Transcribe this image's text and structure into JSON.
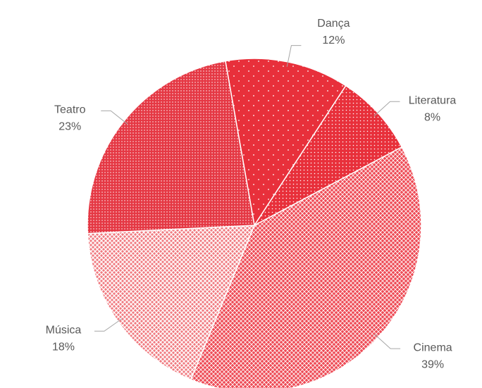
{
  "chart_data": {
    "type": "pie",
    "categories": [
      "Dança",
      "Literatura",
      "Cinema",
      "Música",
      "Teatro"
    ],
    "values": [
      12,
      8,
      39,
      18,
      23
    ],
    "value_labels": [
      "12%",
      "8%",
      "39%",
      "18%",
      "23%"
    ],
    "colors": [
      "#e8303b",
      "#e8303b",
      "#ee4a55",
      "#f07a80",
      "#e53844"
    ]
  }
}
